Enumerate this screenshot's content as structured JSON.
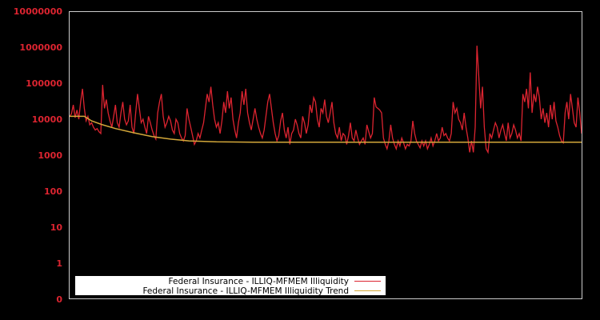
{
  "chart_data": {
    "type": "line",
    "title": "",
    "xlabel": "",
    "ylabel": "",
    "yscale": "log",
    "ylim": [
      0,
      10000000
    ],
    "y_tick_labels": [
      "10000000",
      "1000000",
      "100000",
      "10000",
      "1000",
      "100",
      "10",
      "1",
      "0"
    ],
    "grid": false,
    "legend_position": "lower left inside",
    "colors": {
      "background": "#000000",
      "frame": "#cccccc",
      "tick_label": "#dc2430",
      "series": "#dc2430",
      "trend": "#d4a83a"
    },
    "series": [
      {
        "name": "Federal Insurance - ILLIQ-MFMEM Illiquidity",
        "color": "#dc2430",
        "points": [
          [
            0,
            12000
          ],
          [
            1,
            14000
          ],
          [
            2,
            25000
          ],
          [
            3,
            11000
          ],
          [
            4,
            18000
          ],
          [
            5,
            10000
          ],
          [
            6,
            30000
          ],
          [
            7,
            70000
          ],
          [
            8,
            20000
          ],
          [
            9,
            9000
          ],
          [
            10,
            12000
          ],
          [
            11,
            7000
          ],
          [
            12,
            8000
          ],
          [
            13,
            6000
          ],
          [
            14,
            5000
          ],
          [
            15,
            5500
          ],
          [
            16,
            4500
          ],
          [
            17,
            4000
          ],
          [
            18,
            90000
          ],
          [
            19,
            20000
          ],
          [
            20,
            35000
          ],
          [
            21,
            15000
          ],
          [
            22,
            9000
          ],
          [
            23,
            6000
          ],
          [
            24,
            12000
          ],
          [
            25,
            25000
          ],
          [
            26,
            8000
          ],
          [
            27,
            6000
          ],
          [
            28,
            15000
          ],
          [
            29,
            30000
          ],
          [
            30,
            10000
          ],
          [
            31,
            7000
          ],
          [
            32,
            9000
          ],
          [
            33,
            25000
          ],
          [
            34,
            6000
          ],
          [
            35,
            4000
          ],
          [
            36,
            15000
          ],
          [
            37,
            50000
          ],
          [
            38,
            20000
          ],
          [
            39,
            8000
          ],
          [
            40,
            10000
          ],
          [
            41,
            6000
          ],
          [
            42,
            4000
          ],
          [
            43,
            12000
          ],
          [
            44,
            8000
          ],
          [
            45,
            5000
          ],
          [
            46,
            3500
          ],
          [
            47,
            2800
          ],
          [
            48,
            15000
          ],
          [
            49,
            30000
          ],
          [
            50,
            50000
          ],
          [
            51,
            12000
          ],
          [
            52,
            6000
          ],
          [
            53,
            8000
          ],
          [
            54,
            12000
          ],
          [
            55,
            9000
          ],
          [
            56,
            5000
          ],
          [
            57,
            4000
          ],
          [
            58,
            10000
          ],
          [
            59,
            8000
          ],
          [
            60,
            4000
          ],
          [
            61,
            3000
          ],
          [
            62,
            2500
          ],
          [
            63,
            3500
          ],
          [
            64,
            20000
          ],
          [
            65,
            10000
          ],
          [
            66,
            6000
          ],
          [
            67,
            3500
          ],
          [
            68,
            2000
          ],
          [
            69,
            2500
          ],
          [
            70,
            4000
          ],
          [
            71,
            3000
          ],
          [
            72,
            5000
          ],
          [
            73,
            8000
          ],
          [
            74,
            20000
          ],
          [
            75,
            50000
          ],
          [
            76,
            30000
          ],
          [
            77,
            80000
          ],
          [
            78,
            25000
          ],
          [
            79,
            10000
          ],
          [
            80,
            6000
          ],
          [
            81,
            8000
          ],
          [
            82,
            4000
          ],
          [
            83,
            9000
          ],
          [
            84,
            30000
          ],
          [
            85,
            15000
          ],
          [
            86,
            60000
          ],
          [
            87,
            20000
          ],
          [
            88,
            40000
          ],
          [
            89,
            10000
          ],
          [
            90,
            5000
          ],
          [
            91,
            3000
          ],
          [
            92,
            8000
          ],
          [
            93,
            15000
          ],
          [
            94,
            60000
          ],
          [
            95,
            25000
          ],
          [
            96,
            70000
          ],
          [
            97,
            15000
          ],
          [
            98,
            8000
          ],
          [
            99,
            5000
          ],
          [
            100,
            10000
          ],
          [
            101,
            20000
          ],
          [
            102,
            10000
          ],
          [
            103,
            6000
          ],
          [
            104,
            4000
          ],
          [
            105,
            3000
          ],
          [
            106,
            5000
          ],
          [
            107,
            12000
          ],
          [
            108,
            30000
          ],
          [
            109,
            50000
          ],
          [
            110,
            20000
          ],
          [
            111,
            8000
          ],
          [
            112,
            4000
          ],
          [
            113,
            2500
          ],
          [
            114,
            3500
          ],
          [
            115,
            9000
          ],
          [
            116,
            15000
          ],
          [
            117,
            5000
          ],
          [
            118,
            3000
          ],
          [
            119,
            6000
          ],
          [
            120,
            2000
          ],
          [
            121,
            4000
          ],
          [
            122,
            5000
          ],
          [
            123,
            10000
          ],
          [
            124,
            7000
          ],
          [
            125,
            4000
          ],
          [
            126,
            3000
          ],
          [
            127,
            12000
          ],
          [
            128,
            8000
          ],
          [
            129,
            4000
          ],
          [
            130,
            7000
          ],
          [
            131,
            25000
          ],
          [
            132,
            15000
          ],
          [
            133,
            40000
          ],
          [
            134,
            30000
          ],
          [
            135,
            10000
          ],
          [
            136,
            6000
          ],
          [
            137,
            20000
          ],
          [
            138,
            15000
          ],
          [
            139,
            35000
          ],
          [
            140,
            12000
          ],
          [
            141,
            8000
          ],
          [
            142,
            15000
          ],
          [
            143,
            30000
          ],
          [
            144,
            8000
          ],
          [
            145,
            4000
          ],
          [
            146,
            3000
          ],
          [
            147,
            6000
          ],
          [
            148,
            2500
          ],
          [
            149,
            4000
          ],
          [
            150,
            3500
          ],
          [
            151,
            2000
          ],
          [
            152,
            3500
          ],
          [
            153,
            8000
          ],
          [
            154,
            3000
          ],
          [
            155,
            2500
          ],
          [
            156,
            5000
          ],
          [
            157,
            3000
          ],
          [
            158,
            2000
          ],
          [
            159,
            2500
          ],
          [
            160,
            3000
          ],
          [
            161,
            2000
          ],
          [
            162,
            7000
          ],
          [
            163,
            4500
          ],
          [
            164,
            3000
          ],
          [
            165,
            4000
          ],
          [
            166,
            40000
          ],
          [
            167,
            22000
          ],
          [
            168,
            20000
          ],
          [
            169,
            18000
          ],
          [
            170,
            15000
          ],
          [
            171,
            3000
          ],
          [
            172,
            2000
          ],
          [
            173,
            1500
          ],
          [
            174,
            2500
          ],
          [
            175,
            7000
          ],
          [
            176,
            3000
          ],
          [
            177,
            2000
          ],
          [
            178,
            1500
          ],
          [
            179,
            2500
          ],
          [
            180,
            1800
          ],
          [
            181,
            3000
          ],
          [
            182,
            2200
          ],
          [
            183,
            1500
          ],
          [
            184,
            2000
          ],
          [
            185,
            1800
          ],
          [
            186,
            2500
          ],
          [
            187,
            9000
          ],
          [
            188,
            4000
          ],
          [
            189,
            2500
          ],
          [
            190,
            2000
          ],
          [
            191,
            1600
          ],
          [
            192,
            2500
          ],
          [
            193,
            1800
          ],
          [
            194,
            2500
          ],
          [
            195,
            1500
          ],
          [
            196,
            2000
          ],
          [
            197,
            3000
          ],
          [
            198,
            1800
          ],
          [
            199,
            2500
          ],
          [
            200,
            4000
          ],
          [
            201,
            2500
          ],
          [
            202,
            3000
          ],
          [
            203,
            6000
          ],
          [
            204,
            3500
          ],
          [
            205,
            4000
          ],
          [
            206,
            3000
          ],
          [
            207,
            2500
          ],
          [
            208,
            4000
          ],
          [
            209,
            30000
          ],
          [
            210,
            15000
          ],
          [
            211,
            20000
          ],
          [
            212,
            10000
          ],
          [
            213,
            8000
          ],
          [
            214,
            5000
          ],
          [
            215,
            15000
          ],
          [
            216,
            6000
          ],
          [
            217,
            3000
          ],
          [
            218,
            1200
          ],
          [
            219,
            2500
          ],
          [
            220,
            1200
          ],
          [
            221,
            6000
          ],
          [
            222,
            1100000
          ],
          [
            223,
            150000
          ],
          [
            224,
            20000
          ],
          [
            225,
            80000
          ],
          [
            226,
            6000
          ],
          [
            227,
            1500
          ],
          [
            228,
            1200
          ],
          [
            229,
            4000
          ],
          [
            230,
            3000
          ],
          [
            231,
            5000
          ],
          [
            232,
            8000
          ],
          [
            233,
            6000
          ],
          [
            234,
            3000
          ],
          [
            235,
            5000
          ],
          [
            236,
            7000
          ],
          [
            237,
            4000
          ],
          [
            238,
            2500
          ],
          [
            239,
            8000
          ],
          [
            240,
            3000
          ],
          [
            241,
            4000
          ],
          [
            242,
            7000
          ],
          [
            243,
            5000
          ],
          [
            244,
            3000
          ],
          [
            245,
            4000
          ],
          [
            246,
            2500
          ],
          [
            247,
            50000
          ],
          [
            248,
            30000
          ],
          [
            249,
            70000
          ],
          [
            250,
            20000
          ],
          [
            251,
            200000
          ],
          [
            252,
            15000
          ],
          [
            253,
            50000
          ],
          [
            254,
            30000
          ],
          [
            255,
            80000
          ],
          [
            256,
            40000
          ],
          [
            257,
            10000
          ],
          [
            258,
            20000
          ],
          [
            259,
            8000
          ],
          [
            260,
            15000
          ],
          [
            261,
            6000
          ],
          [
            262,
            25000
          ],
          [
            263,
            10000
          ],
          [
            264,
            30000
          ],
          [
            265,
            9000
          ],
          [
            266,
            6000
          ],
          [
            267,
            3500
          ],
          [
            268,
            2500
          ],
          [
            269,
            2200
          ],
          [
            270,
            15000
          ],
          [
            271,
            30000
          ],
          [
            272,
            10000
          ],
          [
            273,
            50000
          ],
          [
            274,
            20000
          ],
          [
            275,
            8000
          ],
          [
            276,
            6000
          ],
          [
            277,
            40000
          ],
          [
            278,
            15000
          ],
          [
            279,
            4000
          ]
        ]
      },
      {
        "name": "Federal Insurance - ILLIQ-MFMEM Illiquidity Trend",
        "color": "#d4a83a",
        "points": [
          [
            0,
            12000
          ],
          [
            8,
            12000
          ],
          [
            12,
            9000
          ],
          [
            18,
            7000
          ],
          [
            25,
            5500
          ],
          [
            35,
            4200
          ],
          [
            45,
            3300
          ],
          [
            55,
            2800
          ],
          [
            65,
            2500
          ],
          [
            80,
            2350
          ],
          [
            100,
            2300
          ],
          [
            279,
            2300
          ]
        ]
      }
    ]
  },
  "legend": {
    "items": [
      {
        "label": "Federal Insurance - ILLIQ-MFMEM Illiquidity",
        "color": "#dc2430"
      },
      {
        "label": "Federal Insurance - ILLIQ-MFMEM Illiquidity Trend",
        "color": "#d4a83a"
      }
    ]
  }
}
